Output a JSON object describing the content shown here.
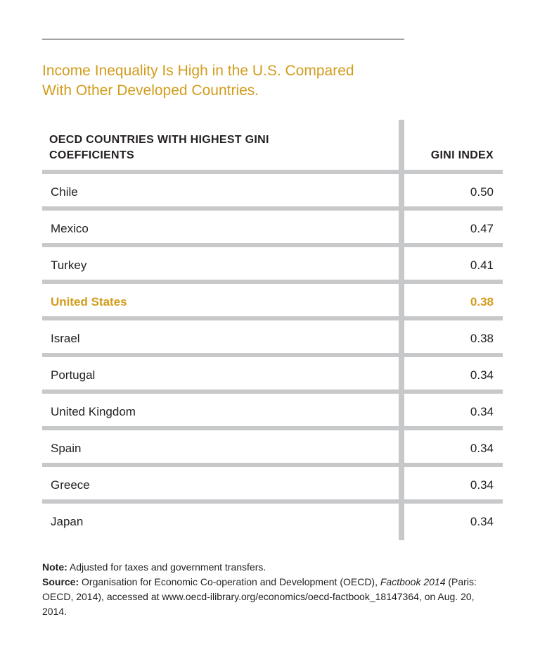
{
  "header": {
    "title_line1": "Income Inequality Is High in the U.S. Compared",
    "title_line2": "With Other Developed Countries."
  },
  "colors": {
    "accent": "#d29c1d",
    "text": "#231f20",
    "divider": "#c7c8ca"
  },
  "highlight_index": 3,
  "chart_data": {
    "type": "table",
    "columns": [
      {
        "line1": "OECD COUNTRIES WITH HIGHEST GINI",
        "line2": "COEFFICIENTS"
      },
      {
        "label": "GINI INDEX"
      }
    ],
    "rows": [
      {
        "country": "Chile",
        "value": "0.50"
      },
      {
        "country": "Mexico",
        "value": "0.47"
      },
      {
        "country": "Turkey",
        "value": "0.41"
      },
      {
        "country": "United States",
        "value": "0.38"
      },
      {
        "country": "Israel",
        "value": "0.38"
      },
      {
        "country": "Portugal",
        "value": "0.34"
      },
      {
        "country": "United Kingdom",
        "value": "0.34"
      },
      {
        "country": "Spain",
        "value": "0.34"
      },
      {
        "country": "Greece",
        "value": "0.34"
      },
      {
        "country": "Japan",
        "value": "0.34"
      }
    ]
  },
  "notes": {
    "note_label": "Note:",
    "note_text": " Adjusted for taxes and government transfers.",
    "source_label": "Source:",
    "source_text": " Organisation for Economic Co-operation and Development (OECD), ",
    "source_italic1": "Factbook 2014",
    "source_text2": " (Paris: OECD, 2014), accessed at www.oecd-ilibrary.org/economics/oecd-factbook_18147364, on Aug. 20, 2014."
  }
}
